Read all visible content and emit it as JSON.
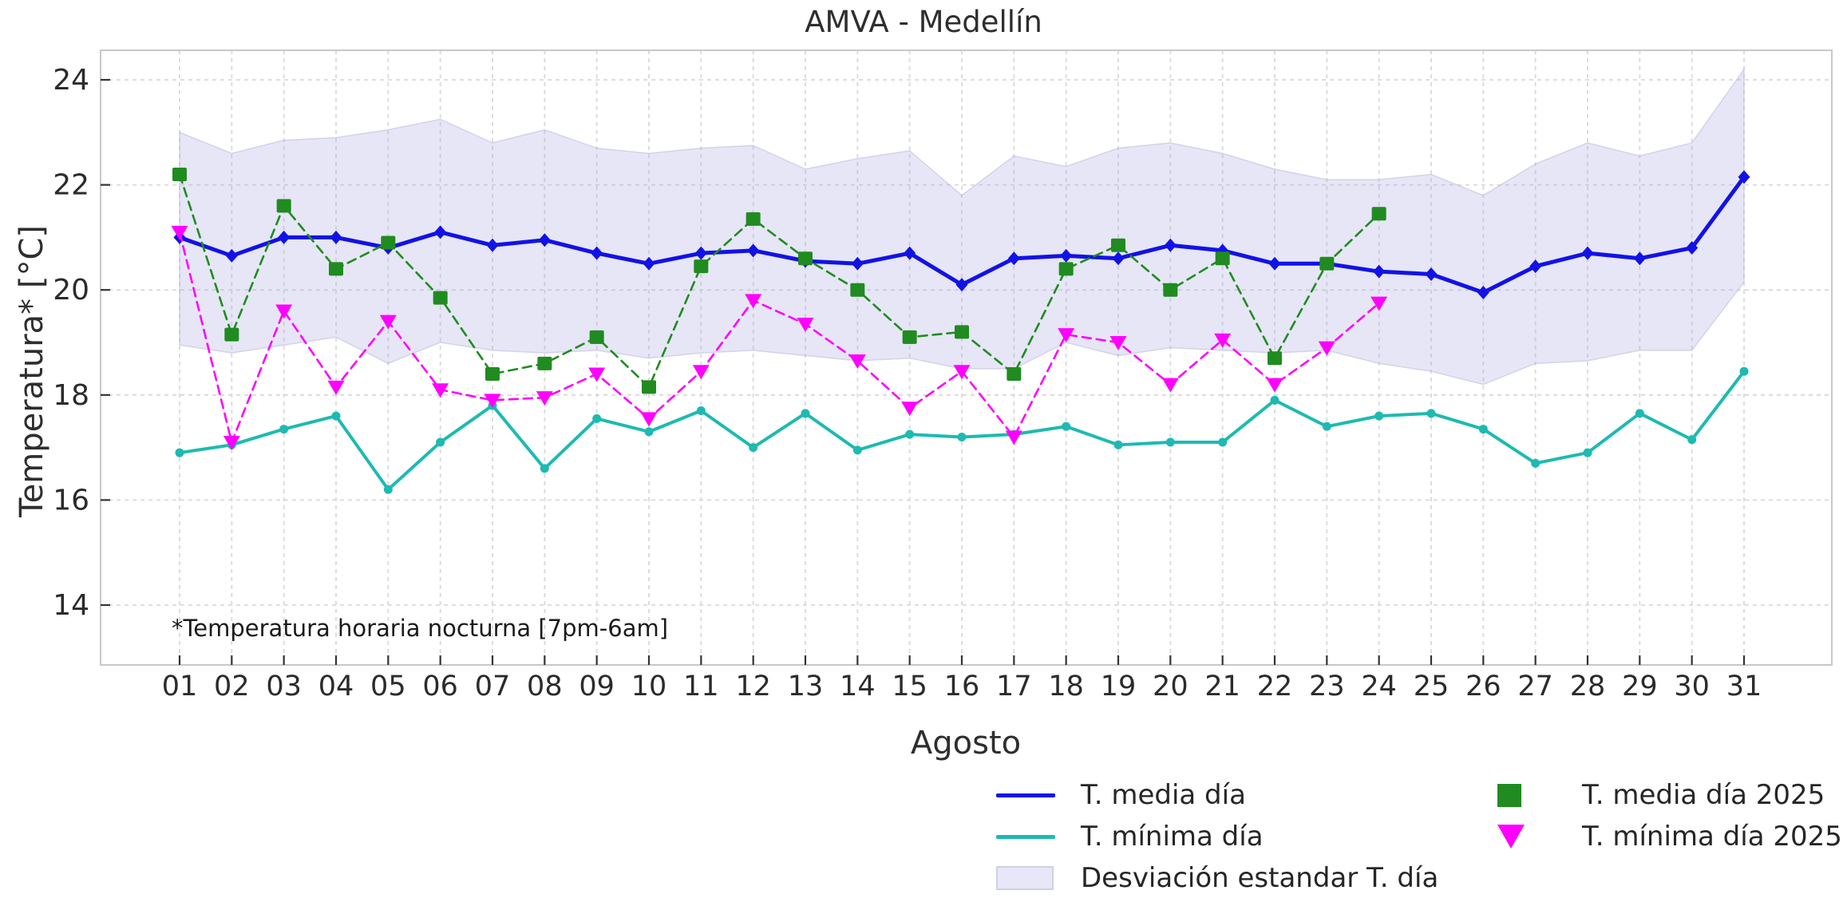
{
  "figure": {
    "title": "AMVA - Medellín",
    "x_axis_label": "Agosto",
    "y_axis_label": "Temperatura* [°C]",
    "annotation": "*Temperatura horaria nocturna [7pm-6am]"
  },
  "colors": {
    "media_line": "#1212e6",
    "minima_line": "#1dbab1",
    "media_2025": "#208b20",
    "minima_2025": "#ff00ff",
    "band_fill": "#adade2",
    "band_edge": "#b9b9e2",
    "grid": "#d9d9d9",
    "spine": "#c8c8c8",
    "tick": "#333333",
    "text": "#2b2b2b"
  },
  "legend": {
    "entries": [
      {
        "label": "T. media día",
        "swatch": "line",
        "color": "#1212e6"
      },
      {
        "label": "T. mínima día",
        "swatch": "line",
        "color": "#1dbab1"
      },
      {
        "label": "Desviación estandar T. día",
        "swatch": "patch",
        "color": "#e7e7f8"
      },
      {
        "label": "T. media día 2025",
        "swatch": "square",
        "color": "#208b20"
      },
      {
        "label": "T. mínima día 2025",
        "swatch": "triangle-down",
        "color": "#ff00ff"
      }
    ]
  },
  "chart_data": {
    "type": "line",
    "title": "AMVA - Medellín",
    "xlabel": "Agosto",
    "ylabel": "Temperatura* [°C]",
    "x_tick_labels": [
      "01",
      "02",
      "03",
      "04",
      "05",
      "06",
      "07",
      "08",
      "09",
      "10",
      "11",
      "12",
      "13",
      "14",
      "15",
      "16",
      "17",
      "18",
      "19",
      "20",
      "21",
      "22",
      "23",
      "24",
      "25",
      "26",
      "27",
      "28",
      "29",
      "30",
      "31"
    ],
    "y_ticks": [
      14,
      16,
      18,
      20,
      22,
      24
    ],
    "ylim": [
      12.85,
      24.55
    ],
    "grid": true,
    "legend_position": "below",
    "annotation": "*Temperatura horaria nocturna [7pm-6am]",
    "series": [
      {
        "name": "T. media día",
        "color": "#1212e6",
        "line_style": "solid",
        "line_width": 5,
        "marker": "diamond",
        "x": [
          1,
          2,
          3,
          4,
          5,
          6,
          7,
          8,
          9,
          10,
          11,
          12,
          13,
          14,
          15,
          16,
          17,
          18,
          19,
          20,
          21,
          22,
          23,
          24,
          25,
          26,
          27,
          28,
          29,
          30,
          31
        ],
        "values": [
          21.0,
          20.65,
          21.0,
          21.0,
          20.8,
          21.1,
          20.85,
          20.95,
          20.7,
          20.5,
          20.7,
          20.75,
          20.55,
          20.5,
          20.7,
          20.1,
          20.6,
          20.65,
          20.6,
          20.85,
          20.75,
          20.5,
          20.5,
          20.35,
          20.3,
          19.95,
          20.45,
          20.7,
          20.6,
          20.8,
          22.15
        ]
      },
      {
        "name": "T. mínima día",
        "color": "#1dbab1",
        "line_style": "solid",
        "line_width": 4,
        "marker": "circle",
        "x": [
          1,
          2,
          3,
          4,
          5,
          6,
          7,
          8,
          9,
          10,
          11,
          12,
          13,
          14,
          15,
          16,
          17,
          18,
          19,
          20,
          21,
          22,
          23,
          24,
          25,
          26,
          27,
          28,
          29,
          30,
          31
        ],
        "values": [
          16.9,
          17.05,
          17.35,
          17.6,
          16.2,
          17.1,
          17.8,
          16.6,
          17.55,
          17.3,
          17.7,
          17.0,
          17.65,
          16.95,
          17.25,
          17.2,
          17.25,
          17.4,
          17.05,
          17.1,
          17.1,
          17.9,
          17.4,
          17.6,
          17.65,
          17.35,
          16.7,
          16.9,
          17.65,
          17.15,
          18.45
        ]
      },
      {
        "name": "T. media día 2025",
        "color": "#208b20",
        "line_style": "dashed",
        "line_width": 2.6,
        "marker": "square",
        "x": [
          1,
          2,
          3,
          4,
          5,
          6,
          7,
          8,
          9,
          10,
          11,
          12,
          13,
          14,
          15,
          16,
          17,
          18,
          19,
          20,
          21,
          22,
          23,
          24
        ],
        "values": [
          22.2,
          19.15,
          21.6,
          20.4,
          20.9,
          19.85,
          18.4,
          18.6,
          19.1,
          18.15,
          20.45,
          21.35,
          20.6,
          20.0,
          19.1,
          19.2,
          18.4,
          20.4,
          20.85,
          20.0,
          20.6,
          18.7,
          20.5,
          21.45
        ]
      },
      {
        "name": "T. mínima día 2025",
        "color": "#ff00ff",
        "line_style": "dashed",
        "line_width": 2.6,
        "marker": "triangle-down",
        "x": [
          1,
          2,
          3,
          4,
          5,
          6,
          7,
          8,
          9,
          10,
          11,
          12,
          13,
          14,
          15,
          16,
          17,
          18,
          19,
          20,
          21,
          22,
          23,
          24
        ],
        "values": [
          21.1,
          17.1,
          19.6,
          18.15,
          19.4,
          18.1,
          17.9,
          17.95,
          18.4,
          17.55,
          18.45,
          19.8,
          19.35,
          18.65,
          17.75,
          18.45,
          17.2,
          19.15,
          19.0,
          18.2,
          19.05,
          18.2,
          18.9,
          19.75
        ]
      }
    ],
    "band": {
      "name": "Desviación estandar T. día",
      "fill_color": "#adade2",
      "opacity": 0.3,
      "x": [
        1,
        2,
        3,
        4,
        5,
        6,
        7,
        8,
        9,
        10,
        11,
        12,
        13,
        14,
        15,
        16,
        17,
        18,
        19,
        20,
        21,
        22,
        23,
        24,
        25,
        26,
        27,
        28,
        29,
        30,
        31
      ],
      "upper": [
        23.0,
        22.6,
        22.85,
        22.9,
        23.05,
        23.25,
        22.8,
        23.05,
        22.7,
        22.6,
        22.7,
        22.75,
        22.3,
        22.5,
        22.65,
        21.8,
        22.55,
        22.35,
        22.7,
        22.8,
        22.6,
        22.3,
        22.1,
        22.1,
        22.2,
        21.8,
        22.4,
        22.8,
        22.55,
        22.8,
        24.2
      ],
      "lower": [
        18.95,
        18.8,
        18.95,
        19.1,
        18.6,
        19.0,
        18.85,
        18.8,
        18.85,
        18.7,
        18.8,
        18.85,
        18.75,
        18.65,
        18.7,
        18.5,
        18.5,
        19.0,
        18.75,
        18.9,
        18.85,
        18.8,
        18.85,
        18.6,
        18.45,
        18.2,
        18.6,
        18.65,
        18.85,
        18.85,
        20.15
      ]
    }
  }
}
